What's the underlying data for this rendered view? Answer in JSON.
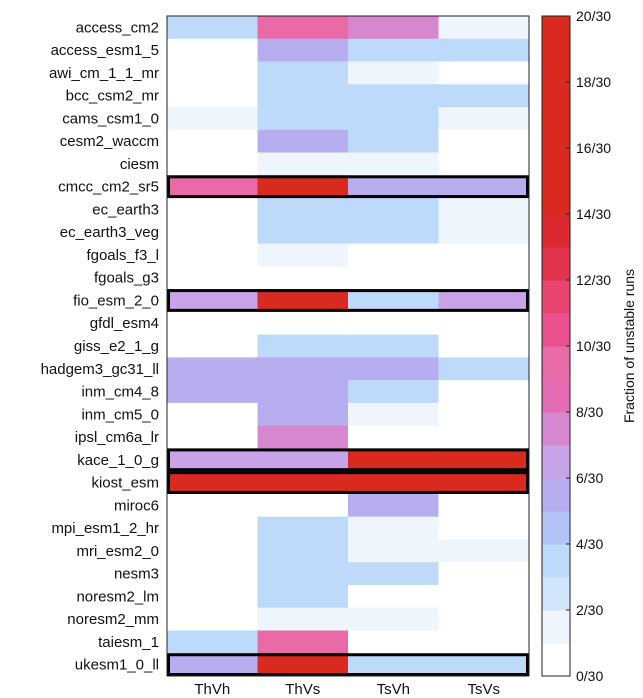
{
  "chart_data": {
    "type": "heatmap",
    "title": "",
    "xlabel": "",
    "ylabel": "",
    "columns": [
      "ThVh",
      "ThVs",
      "TsVh",
      "TsVs"
    ],
    "rows": [
      "access_cm2",
      "access_esm1_5",
      "awi_cm_1_1_mr",
      "bcc_csm2_mr",
      "cams_csm1_0",
      "cesm2_waccm",
      "ciesm",
      "cmcc_cm2_sr5",
      "ec_earth3",
      "ec_earth3_veg",
      "fgoals_f3_l",
      "fgoals_g3",
      "fio_esm_2_0",
      "gfdl_esm4",
      "giss_e2_1_g",
      "hadgem3_gc31_ll",
      "inm_cm4_8",
      "inm_cm5_0",
      "ipsl_cm6a_lr",
      "kace_1_0_g",
      "kiost_esm",
      "miroc6",
      "mpi_esm1_2_hr",
      "mri_esm2_0",
      "nesm3",
      "noresm2_lm",
      "noresm2_mm",
      "taiesm_1",
      "ukesm1_0_ll"
    ],
    "values": [
      [
        3,
        9,
        7,
        1
      ],
      [
        0,
        5,
        3,
        3
      ],
      [
        0,
        3,
        1,
        0
      ],
      [
        0,
        3,
        3,
        3
      ],
      [
        1,
        3,
        3,
        1
      ],
      [
        0,
        5,
        3,
        0
      ],
      [
        0,
        1,
        1,
        0
      ],
      [
        9,
        15,
        5,
        5
      ],
      [
        0,
        3,
        3,
        1
      ],
      [
        0,
        3,
        3,
        1
      ],
      [
        0,
        1,
        0,
        0
      ],
      [
        0,
        0,
        0,
        0
      ],
      [
        6,
        15,
        3,
        6
      ],
      [
        0,
        0,
        0,
        0
      ],
      [
        0,
        3,
        3,
        0
      ],
      [
        5,
        5,
        5,
        3
      ],
      [
        5,
        5,
        3,
        0
      ],
      [
        0,
        5,
        1,
        0
      ],
      [
        0,
        7,
        0,
        0
      ],
      [
        6,
        6,
        19,
        19
      ],
      [
        19,
        19,
        19,
        19
      ],
      [
        0,
        0,
        5,
        0
      ],
      [
        0,
        3,
        1,
        0
      ],
      [
        0,
        3,
        1,
        1
      ],
      [
        0,
        3,
        3,
        0
      ],
      [
        0,
        3,
        0,
        0
      ],
      [
        0,
        1,
        1,
        0
      ],
      [
        3,
        9,
        0,
        0
      ],
      [
        5,
        15,
        3,
        3
      ]
    ],
    "highlighted_rows": [
      "cmcc_cm2_sr5",
      "fio_esm_2_0",
      "kace_1_0_g",
      "kiost_esm",
      "ukesm1_0_ll"
    ],
    "colorbar": {
      "label": "Fraction of unstable runs",
      "min": 0,
      "max": 20,
      "tick_labels": [
        "0/30",
        "2/30",
        "4/30",
        "6/30",
        "8/30",
        "10/30",
        "12/30",
        "14/30",
        "16/30",
        "18/30",
        "20/30"
      ],
      "colors": [
        "#ffffff",
        "#eef5fd",
        "#d2e6fb",
        "#bedafa",
        "#b1c4f5",
        "#b7aef0",
        "#c9a3e8",
        "#d787d0",
        "#e46cb5",
        "#e86aa7",
        "#ea4f8e",
        "#e9456f",
        "#e2334c",
        "#dc2930",
        "#d82a1e",
        "#d82a1e",
        "#d82a1e",
        "#d82a1e",
        "#d82a1e",
        "#d82a1e"
      ]
    }
  }
}
